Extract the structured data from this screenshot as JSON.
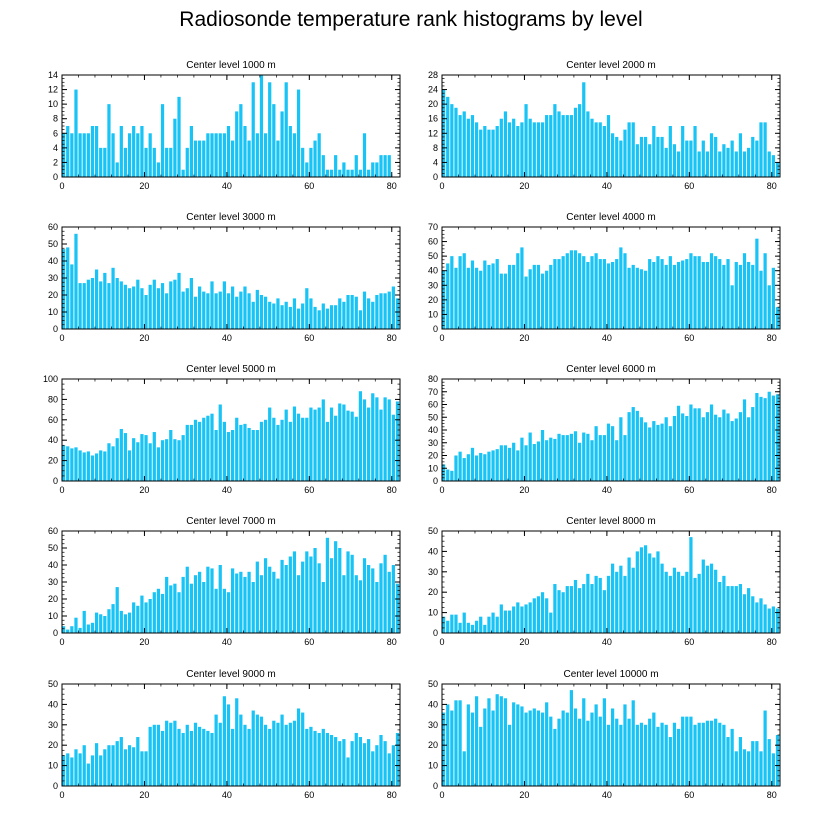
{
  "title": "Radiosonde temperature rank histograms by level",
  "colors": {
    "bar": "#18c3f5",
    "axis": "#000000",
    "background": "#ffffff"
  },
  "chart_data": [
    {
      "type": "bar",
      "title": "Center level 1000 m",
      "xlim": [
        0,
        82
      ],
      "ylim": [
        0,
        14
      ],
      "xticks": [
        0,
        20,
        40,
        60,
        80
      ],
      "yticks": [
        0,
        2,
        4,
        6,
        8,
        10,
        12,
        14
      ],
      "x_start": 0,
      "values": [
        6,
        7,
        6,
        12,
        6,
        6,
        6,
        7,
        7,
        4,
        4,
        10,
        6,
        2,
        7,
        4,
        6,
        7,
        6,
        7,
        4,
        6,
        4,
        2,
        10,
        4,
        4,
        8,
        11,
        1,
        4,
        7,
        5,
        5,
        5,
        6,
        6,
        6,
        6,
        6,
        7,
        5,
        9,
        10,
        7,
        5,
        13,
        6,
        14,
        6,
        13,
        10,
        5,
        9,
        13,
        7,
        6,
        12,
        4,
        2,
        4,
        5,
        6,
        3,
        1,
        1,
        3,
        1,
        2,
        1,
        1,
        3,
        1,
        6,
        1,
        2,
        2,
        3,
        3,
        3
      ],
      "xlabel": "",
      "ylabel": ""
    },
    {
      "type": "bar",
      "title": "Center level 2000 m",
      "xlim": [
        0,
        82
      ],
      "ylim": [
        0,
        28
      ],
      "xticks": [
        0,
        20,
        40,
        60,
        80
      ],
      "yticks": [
        0,
        4,
        8,
        12,
        16,
        20,
        24,
        28
      ],
      "x_start": 0,
      "values": [
        24,
        22,
        20,
        19,
        17,
        18,
        16,
        17,
        15,
        13,
        14,
        13,
        13,
        14,
        16,
        18,
        15,
        16,
        14,
        15,
        20,
        16,
        15,
        15,
        15,
        17,
        17,
        20,
        18,
        17,
        17,
        17,
        19,
        20,
        26,
        18,
        16,
        15,
        15,
        14,
        17,
        12,
        11,
        10,
        13,
        15,
        15,
        9,
        11,
        11,
        9,
        14,
        11,
        11,
        8,
        14,
        9,
        7,
        14,
        10,
        10,
        14,
        7,
        10,
        7,
        12,
        11,
        7,
        9,
        8,
        10,
        7,
        12,
        7,
        8,
        11,
        10,
        15,
        15,
        7,
        6,
        4
      ],
      "xlabel": "",
      "ylabel": ""
    },
    {
      "type": "bar",
      "title": "Center level 3000 m",
      "xlim": [
        0,
        82
      ],
      "ylim": [
        0,
        60
      ],
      "xticks": [
        0,
        20,
        40,
        60,
        80
      ],
      "yticks": [
        0,
        10,
        20,
        30,
        40,
        50,
        60
      ],
      "x_start": 0,
      "values": [
        47,
        48,
        38,
        56,
        27,
        27,
        29,
        30,
        35,
        28,
        33,
        27,
        36,
        30,
        28,
        26,
        24,
        25,
        29,
        24,
        20,
        26,
        29,
        24,
        27,
        21,
        28,
        29,
        33,
        22,
        24,
        30,
        19,
        25,
        22,
        21,
        28,
        21,
        22,
        28,
        21,
        25,
        19,
        22,
        25,
        21,
        16,
        23,
        20,
        19,
        16,
        15,
        18,
        14,
        16,
        13,
        18,
        12,
        15,
        24,
        18,
        13,
        11,
        15,
        12,
        14,
        14,
        18,
        16,
        20,
        20,
        19,
        11,
        22,
        18,
        16,
        20,
        21,
        21,
        22,
        25,
        18
      ],
      "xlabel": "",
      "ylabel": ""
    },
    {
      "type": "bar",
      "title": "Center level 4000 m",
      "xlim": [
        0,
        82
      ],
      "ylim": [
        0,
        70
      ],
      "xticks": [
        0,
        20,
        40,
        60,
        80
      ],
      "yticks": [
        0,
        10,
        20,
        30,
        40,
        50,
        60,
        70
      ],
      "x_start": 0,
      "values": [
        40,
        45,
        50,
        42,
        50,
        52,
        42,
        47,
        42,
        40,
        47,
        44,
        45,
        48,
        38,
        38,
        44,
        44,
        52,
        56,
        36,
        41,
        44,
        44,
        38,
        40,
        44,
        48,
        48,
        50,
        52,
        54,
        54,
        52,
        50,
        46,
        50,
        52,
        48,
        48,
        45,
        46,
        48,
        56,
        52,
        42,
        44,
        42,
        41,
        40,
        48,
        46,
        50,
        48,
        44,
        50,
        44,
        46,
        47,
        48,
        52,
        50,
        50,
        46,
        46,
        52,
        50,
        48,
        44,
        48,
        30,
        46,
        44,
        52,
        46,
        44,
        62,
        40,
        52,
        30,
        42,
        15
      ],
      "xlabel": "",
      "ylabel": ""
    },
    {
      "type": "bar",
      "title": "Center level 5000 m",
      "xlim": [
        0,
        82
      ],
      "ylim": [
        0,
        100
      ],
      "xticks": [
        0,
        20,
        40,
        60,
        80
      ],
      "yticks": [
        0,
        20,
        40,
        60,
        80,
        100
      ],
      "x_start": 0,
      "values": [
        35,
        34,
        32,
        33,
        30,
        28,
        29,
        25,
        27,
        30,
        29,
        37,
        34,
        42,
        51,
        47,
        30,
        42,
        38,
        46,
        45,
        37,
        48,
        33,
        40,
        41,
        50,
        41,
        40,
        45,
        55,
        55,
        60,
        58,
        62,
        64,
        66,
        50,
        75,
        58,
        48,
        50,
        62,
        55,
        56,
        52,
        50,
        50,
        58,
        60,
        72,
        62,
        55,
        60,
        70,
        58,
        73,
        66,
        62,
        62,
        72,
        70,
        72,
        80,
        58,
        72,
        64,
        76,
        75,
        69,
        68,
        63,
        88,
        80,
        72,
        86,
        82,
        70,
        82,
        80,
        65,
        78
      ],
      "xlabel": "",
      "ylabel": ""
    },
    {
      "type": "bar",
      "title": "Center level 6000 m",
      "xlim": [
        0,
        82
      ],
      "ylim": [
        0,
        80
      ],
      "xticks": [
        0,
        20,
        40,
        60,
        80
      ],
      "yticks": [
        0,
        10,
        20,
        30,
        40,
        50,
        60,
        70,
        80
      ],
      "x_start": 0,
      "values": [
        13,
        9,
        8,
        20,
        23,
        18,
        21,
        26,
        20,
        22,
        21,
        23,
        24,
        25,
        28,
        28,
        26,
        30,
        24,
        34,
        28,
        38,
        29,
        31,
        40,
        32,
        34,
        33,
        37,
        36,
        36,
        37,
        39,
        30,
        38,
        37,
        32,
        43,
        36,
        36,
        45,
        43,
        32,
        50,
        36,
        54,
        58,
        55,
        50,
        46,
        42,
        47,
        44,
        45,
        50,
        43,
        51,
        59,
        53,
        51,
        60,
        57,
        57,
        50,
        54,
        60,
        52,
        50,
        56,
        53,
        47,
        49,
        54,
        64,
        50,
        58,
        69,
        66,
        65,
        70,
        67,
        68
      ],
      "xlabel": "",
      "ylabel": ""
    },
    {
      "type": "bar",
      "title": "Center level 7000 m",
      "xlim": [
        0,
        82
      ],
      "ylim": [
        0,
        60
      ],
      "xticks": [
        0,
        20,
        40,
        60,
        80
      ],
      "yticks": [
        0,
        10,
        20,
        30,
        40,
        50,
        60
      ],
      "x_start": 0,
      "values": [
        4,
        2,
        4,
        9,
        3,
        13,
        5,
        6,
        12,
        11,
        10,
        14,
        17,
        27,
        13,
        11,
        12,
        18,
        16,
        22,
        18,
        20,
        24,
        26,
        23,
        33,
        28,
        29,
        24,
        33,
        39,
        29,
        34,
        36,
        30,
        39,
        38,
        26,
        40,
        26,
        24,
        38,
        35,
        36,
        33,
        36,
        30,
        42,
        34,
        44,
        39,
        36,
        32,
        43,
        40,
        45,
        48,
        34,
        42,
        48,
        45,
        50,
        41,
        30,
        56,
        44,
        54,
        50,
        34,
        48,
        46,
        34,
        31,
        44,
        40,
        38,
        30,
        41,
        46,
        36,
        40,
        29
      ],
      "xlabel": "",
      "ylabel": ""
    },
    {
      "type": "bar",
      "title": "Center level 8000 m",
      "xlim": [
        0,
        82
      ],
      "ylim": [
        0,
        50
      ],
      "xticks": [
        0,
        20,
        40,
        60,
        80
      ],
      "yticks": [
        0,
        10,
        20,
        30,
        40,
        50
      ],
      "x_start": 0,
      "values": [
        8,
        6,
        9,
        9,
        5,
        10,
        5,
        4,
        6,
        8,
        4,
        8,
        10,
        8,
        14,
        11,
        11,
        13,
        15,
        13,
        14,
        15,
        17,
        18,
        20,
        17,
        10,
        24,
        21,
        20,
        23,
        23,
        26,
        22,
        24,
        29,
        24,
        28,
        27,
        21,
        28,
        34,
        30,
        33,
        28,
        37,
        32,
        40,
        42,
        43,
        39,
        37,
        40,
        34,
        30,
        28,
        32,
        30,
        28,
        30,
        47,
        27,
        29,
        36,
        33,
        34,
        31,
        25,
        28,
        23,
        23,
        23,
        24,
        19,
        22,
        18,
        15,
        17,
        14,
        12,
        13,
        12
      ],
      "xlabel": "",
      "ylabel": ""
    },
    {
      "type": "bar",
      "title": "Center level 9000 m",
      "xlim": [
        0,
        82
      ],
      "ylim": [
        0,
        50
      ],
      "xticks": [
        0,
        20,
        40,
        60,
        80
      ],
      "yticks": [
        0,
        10,
        20,
        30,
        40,
        50
      ],
      "x_start": 0,
      "values": [
        15,
        16,
        14,
        18,
        16,
        20,
        11,
        15,
        21,
        15,
        18,
        20,
        20,
        22,
        24,
        18,
        20,
        19,
        24,
        17,
        17,
        29,
        30,
        30,
        27,
        32,
        31,
        32,
        28,
        26,
        30,
        27,
        31,
        29,
        28,
        27,
        26,
        35,
        31,
        44,
        40,
        28,
        43,
        35,
        30,
        28,
        37,
        35,
        34,
        30,
        28,
        32,
        31,
        35,
        30,
        31,
        32,
        38,
        36,
        28,
        29,
        27,
        26,
        28,
        26,
        25,
        24,
        22,
        23,
        14,
        22,
        26,
        24,
        21,
        23,
        17,
        20,
        25,
        22,
        16,
        20,
        26
      ],
      "xlabel": "",
      "ylabel": ""
    },
    {
      "type": "bar",
      "title": "Center level 10000 m",
      "xlim": [
        0,
        82
      ],
      "ylim": [
        0,
        50
      ],
      "xticks": [
        0,
        20,
        40,
        60,
        80
      ],
      "yticks": [
        0,
        10,
        20,
        30,
        40,
        50
      ],
      "x_start": 0,
      "values": [
        36,
        40,
        37,
        42,
        42,
        17,
        40,
        36,
        44,
        29,
        38,
        43,
        37,
        45,
        44,
        43,
        30,
        41,
        40,
        39,
        36,
        37,
        38,
        37,
        36,
        41,
        34,
        28,
        33,
        37,
        36,
        47,
        38,
        33,
        43,
        32,
        36,
        40,
        34,
        43,
        30,
        38,
        33,
        30,
        40,
        33,
        42,
        30,
        31,
        30,
        33,
        36,
        29,
        31,
        30,
        24,
        31,
        28,
        34,
        34,
        34,
        30,
        31,
        31,
        32,
        32,
        33,
        31,
        30,
        24,
        28,
        17,
        24,
        18,
        17,
        22,
        22,
        17,
        37,
        23,
        16,
        25
      ],
      "xlabel": "",
      "ylabel": ""
    }
  ]
}
